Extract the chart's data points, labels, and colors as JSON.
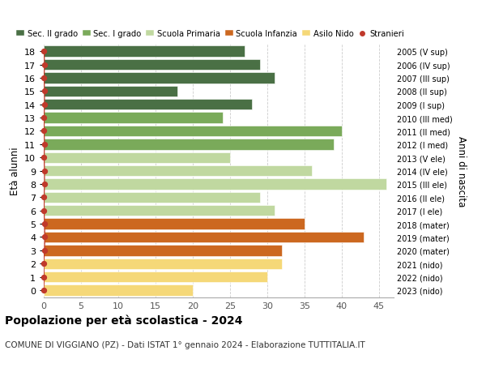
{
  "ages": [
    18,
    17,
    16,
    15,
    14,
    13,
    12,
    11,
    10,
    9,
    8,
    7,
    6,
    5,
    4,
    3,
    2,
    1,
    0
  ],
  "values": [
    27,
    29,
    31,
    18,
    28,
    24,
    40,
    39,
    25,
    36,
    46,
    29,
    31,
    35,
    43,
    32,
    32,
    30,
    20
  ],
  "stranieri_vals": [
    1,
    2,
    1,
    2,
    2,
    1,
    1,
    2,
    1,
    2,
    2,
    1,
    1,
    2,
    3,
    2,
    0,
    1,
    0
  ],
  "right_labels": [
    "2005 (V sup)",
    "2006 (IV sup)",
    "2007 (III sup)",
    "2008 (II sup)",
    "2009 (I sup)",
    "2010 (III med)",
    "2011 (II med)",
    "2012 (I med)",
    "2013 (V ele)",
    "2014 (IV ele)",
    "2015 (III ele)",
    "2016 (II ele)",
    "2017 (I ele)",
    "2018 (mater)",
    "2019 (mater)",
    "2020 (mater)",
    "2021 (nido)",
    "2022 (nido)",
    "2023 (nido)"
  ],
  "bar_colors": [
    "#4a7045",
    "#4a7045",
    "#4a7045",
    "#4a7045",
    "#4a7045",
    "#7aaa5a",
    "#7aaa5a",
    "#7aaa5a",
    "#c0d8a0",
    "#c0d8a0",
    "#c0d8a0",
    "#c0d8a0",
    "#c0d8a0",
    "#cc6820",
    "#cc6820",
    "#cc6820",
    "#f5d878",
    "#f5d878",
    "#f5d878"
  ],
  "legend_labels": [
    "Sec. II grado",
    "Sec. I grado",
    "Scuola Primaria",
    "Scuola Infanzia",
    "Asilo Nido",
    "Stranieri"
  ],
  "legend_colors": [
    "#4a7045",
    "#7aaa5a",
    "#c0d8a0",
    "#cc6820",
    "#f5d878",
    "#c0392b"
  ],
  "ylabel": "Età alunni",
  "right_ylabel": "Anni di nascita",
  "title": "Popolazione per età scolastica - 2024",
  "subtitle": "COMUNE DI VIGGIANO (PZ) - Dati ISTAT 1° gennaio 2024 - Elaborazione TUTTITALIA.IT",
  "xlim": [
    0,
    47
  ],
  "xticks": [
    0,
    5,
    10,
    15,
    20,
    25,
    30,
    35,
    40,
    45
  ],
  "bg_color": "#ffffff",
  "bar_height": 0.82,
  "stranieri_color": "#c0392b",
  "grid_color": "#cccccc"
}
